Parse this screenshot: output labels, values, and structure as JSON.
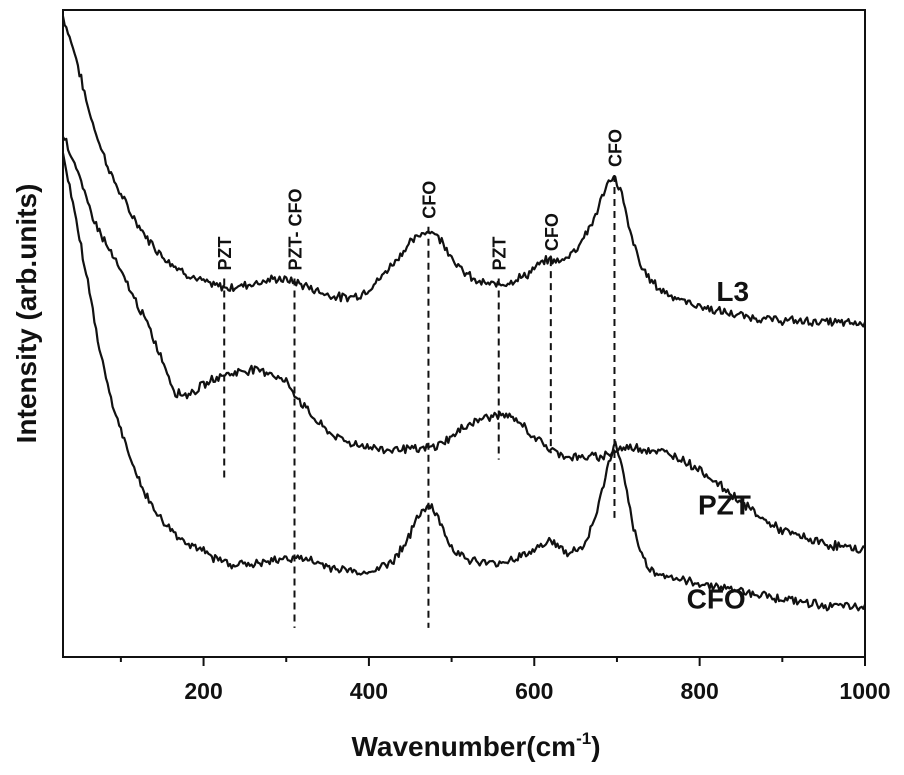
{
  "chart_data": {
    "type": "line",
    "title": "",
    "xlabel": "Wavenumber(cm",
    "xlabel_superscript": "-1",
    "xlabel_close": ")",
    "ylabel": "Intensity (arb.units)",
    "xlim": [
      30,
      1000
    ],
    "ylim": [
      0,
      100
    ],
    "x_ticks": [
      200,
      400,
      600,
      800,
      1000
    ],
    "x_tick_labels": [
      "200",
      "400",
      "600",
      "800",
      "1000"
    ],
    "y_ticks_visible": false,
    "grid": false,
    "line_color": "#111111",
    "series": [
      {
        "name": "L3",
        "x": [
          30,
          45,
          60,
          75,
          90,
          110,
          130,
          150,
          170,
          190,
          210,
          230,
          250,
          270,
          290,
          310,
          330,
          350,
          370,
          390,
          410,
          430,
          450,
          470,
          480,
          490,
          510,
          530,
          550,
          570,
          590,
          610,
          620,
          630,
          650,
          670,
          685,
          695,
          705,
          715,
          730,
          750,
          780,
          820,
          860,
          900,
          950,
          1000
        ],
        "values": [
          99,
          93,
          85,
          79,
          74,
          69,
          65,
          62,
          60,
          58.5,
          57.5,
          57,
          57.5,
          58,
          58.5,
          58,
          57,
          56,
          55.5,
          56,
          58,
          61,
          64,
          66,
          65.5,
          64,
          60,
          58,
          57.5,
          58,
          59,
          61,
          61.5,
          61,
          63,
          67,
          72,
          74.5,
          72,
          66,
          60,
          57,
          55,
          53.5,
          52.5,
          52,
          51.8,
          51.5
        ]
      },
      {
        "name": "PZT",
        "x": [
          30,
          45,
          60,
          75,
          90,
          110,
          130,
          150,
          165,
          180,
          200,
          220,
          240,
          260,
          280,
          300,
          320,
          340,
          360,
          380,
          400,
          420,
          440,
          460,
          480,
          500,
          520,
          540,
          560,
          580,
          600,
          620,
          640,
          660,
          680,
          700,
          720,
          740,
          760,
          780,
          800,
          820,
          840,
          860,
          880,
          900,
          950,
          1000
        ],
        "values": [
          81,
          76,
          70,
          65.5,
          62,
          57,
          52,
          46,
          41,
          40.5,
          42,
          43.5,
          44,
          44.5,
          44,
          42.5,
          39,
          36,
          34,
          33,
          32.5,
          32,
          32.3,
          32,
          32.5,
          34,
          36,
          37,
          37.5,
          36.5,
          34,
          32,
          31,
          30.8,
          31,
          32,
          32.5,
          32,
          31.5,
          30.5,
          29,
          27,
          25,
          23,
          21,
          19.5,
          17.5,
          16.5
        ]
      },
      {
        "name": "CFO",
        "x": [
          30,
          45,
          60,
          75,
          90,
          110,
          130,
          150,
          170,
          190,
          210,
          230,
          250,
          270,
          290,
          310,
          330,
          350,
          370,
          390,
          410,
          430,
          450,
          465,
          475,
          485,
          500,
          520,
          540,
          560,
          580,
          600,
          615,
          625,
          640,
          660,
          675,
          690,
          698,
          705,
          715,
          725,
          740,
          760,
          790,
          820,
          860,
          900,
          950,
          1000
        ],
        "values": [
          78,
          68,
          58,
          47,
          39,
          31,
          25,
          21,
          18.5,
          17,
          15.5,
          14.5,
          14.3,
          14.5,
          15,
          15.5,
          14.8,
          14,
          13.5,
          13,
          13.5,
          15,
          19,
          23,
          23.5,
          21,
          17,
          15,
          14.5,
          14.5,
          15.5,
          16.5,
          18,
          17.5,
          16,
          17,
          22,
          30,
          33,
          30,
          23,
          17,
          13.5,
          12.5,
          11.5,
          11,
          10,
          9,
          8,
          7.5
        ]
      }
    ],
    "series_labels": [
      {
        "series": "L3",
        "text": "L3",
        "x": 840,
        "y": 55
      },
      {
        "series": "PZT",
        "text": "PZT",
        "x": 830,
        "y": 22
      },
      {
        "series": "CFO",
        "text": "CFO",
        "x": 820,
        "y": 7.5
      }
    ],
    "annotations": [
      {
        "text": "PZT",
        "x": 225,
        "y_top": 58.5,
        "y_bottom": 27.5
      },
      {
        "text": "PZT- CFO",
        "x": 310,
        "y_top": 58.5,
        "y_bottom": 4.5
      },
      {
        "text": "CFO",
        "x": 472,
        "y_top": 66.5,
        "y_bottom": 4.5
      },
      {
        "text": "PZT",
        "x": 557,
        "y_top": 58.5,
        "y_bottom": 30.5
      },
      {
        "text": "CFO",
        "x": 620,
        "y_top": 61.5,
        "y_bottom": 31.5
      },
      {
        "text": "CFO",
        "x": 697,
        "y_top": 74.5,
        "y_bottom": 21.5
      }
    ]
  }
}
